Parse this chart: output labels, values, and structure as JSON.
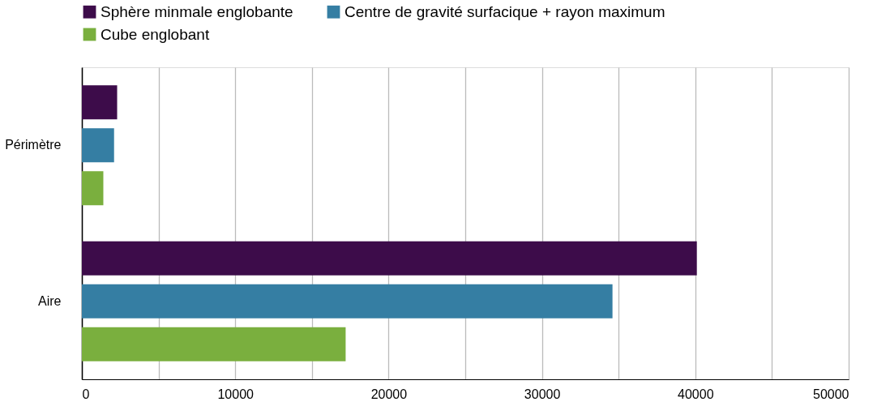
{
  "chart_data": {
    "type": "bar",
    "orientation": "horizontal",
    "categories": [
      "Périmètre",
      "Aire"
    ],
    "series": [
      {
        "name": "Sphère minmale englobante",
        "color": "#3d0c4a",
        "values": [
          2300,
          40100
        ]
      },
      {
        "name": "Centre de gravité surfacique + rayon maximum",
        "color": "#357ea3",
        "values": [
          2100,
          34600
        ]
      },
      {
        "name": "Cube englobant",
        "color": "#7aaf3e",
        "values": [
          1400,
          17200
        ]
      }
    ],
    "xlim": [
      0,
      50000
    ],
    "xticks": [
      0,
      {
        "value": 5000,
        "label": null
      },
      10000,
      {
        "value": 15000,
        "label": null
      },
      20000,
      {
        "value": 25000,
        "label": null
      },
      30000,
      {
        "value": 35000,
        "label": null
      },
      40000,
      {
        "value": 45000,
        "label": null
      },
      50000
    ],
    "grid": "x",
    "legend": "top"
  }
}
